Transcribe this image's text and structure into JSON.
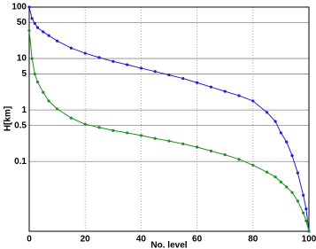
{
  "chart_data": {
    "type": "line",
    "xlabel": "No. level",
    "ylabel": "H[km]",
    "x": [
      0,
      1,
      2,
      3,
      5,
      7,
      10,
      15,
      20,
      25,
      30,
      35,
      40,
      45,
      50,
      55,
      60,
      65,
      70,
      75,
      80,
      85,
      88,
      90,
      92,
      94,
      96,
      98,
      99,
      100
    ],
    "series": [
      {
        "color": "#1f1fd0",
        "values": [
          100,
          60,
          48,
          40,
          33,
          28,
          22,
          16,
          12.7,
          10.5,
          8.8,
          7.6,
          6.5,
          5.6,
          4.8,
          4.1,
          3.4,
          2.8,
          2.3,
          1.9,
          1.5,
          0.9,
          0.6,
          0.36,
          0.24,
          0.13,
          0.06,
          0.022,
          0.012,
          0.0044
        ]
      },
      {
        "color": "#1e9020",
        "values": [
          35,
          10,
          5,
          3.5,
          2.2,
          1.5,
          1.05,
          0.7,
          0.53,
          0.46,
          0.4,
          0.36,
          0.32,
          0.28,
          0.25,
          0.22,
          0.19,
          0.16,
          0.135,
          0.11,
          0.085,
          0.062,
          0.05,
          0.04,
          0.032,
          0.025,
          0.017,
          0.01,
          0.007,
          0.0044
        ]
      }
    ],
    "xlim": [
      0,
      100
    ],
    "xticks": [
      0,
      20,
      40,
      60,
      80,
      100
    ],
    "ylim": [
      0.0044,
      100
    ],
    "yticks": [
      100,
      50,
      10,
      5,
      1,
      0.5,
      0.1
    ],
    "log_y": true,
    "grid": true
  }
}
